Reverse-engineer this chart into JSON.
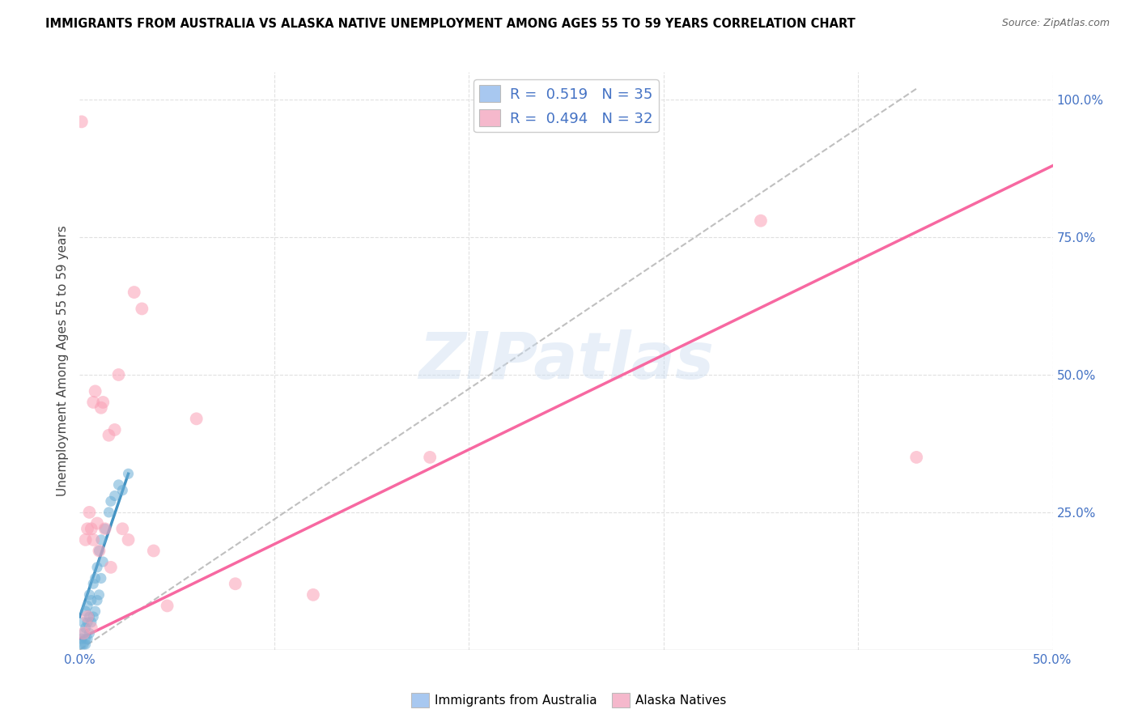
{
  "title": "IMMIGRANTS FROM AUSTRALIA VS ALASKA NATIVE UNEMPLOYMENT AMONG AGES 55 TO 59 YEARS CORRELATION CHART",
  "source": "Source: ZipAtlas.com",
  "ylabel": "Unemployment Among Ages 55 to 59 years",
  "xlim": [
    0.0,
    0.5
  ],
  "ylim": [
    0.0,
    1.05
  ],
  "watermark": "ZIPatlas",
  "blue_scatter_x": [
    0.001,
    0.001,
    0.002,
    0.002,
    0.002,
    0.003,
    0.003,
    0.003,
    0.003,
    0.004,
    0.004,
    0.004,
    0.005,
    0.005,
    0.005,
    0.006,
    0.006,
    0.007,
    0.007,
    0.008,
    0.008,
    0.009,
    0.009,
    0.01,
    0.01,
    0.011,
    0.011,
    0.012,
    0.013,
    0.015,
    0.016,
    0.018,
    0.02,
    0.022,
    0.025
  ],
  "blue_scatter_y": [
    0.01,
    0.02,
    0.01,
    0.03,
    0.05,
    0.01,
    0.02,
    0.04,
    0.07,
    0.02,
    0.05,
    0.08,
    0.03,
    0.06,
    0.1,
    0.05,
    0.09,
    0.06,
    0.12,
    0.07,
    0.13,
    0.09,
    0.15,
    0.1,
    0.18,
    0.13,
    0.2,
    0.16,
    0.22,
    0.25,
    0.27,
    0.28,
    0.3,
    0.29,
    0.32
  ],
  "pink_scatter_x": [
    0.001,
    0.002,
    0.003,
    0.004,
    0.004,
    0.005,
    0.006,
    0.006,
    0.007,
    0.007,
    0.008,
    0.009,
    0.01,
    0.011,
    0.012,
    0.013,
    0.015,
    0.016,
    0.018,
    0.02,
    0.022,
    0.025,
    0.028,
    0.032,
    0.038,
    0.045,
    0.06,
    0.08,
    0.12,
    0.18,
    0.35,
    0.43
  ],
  "pink_scatter_y": [
    0.96,
    0.03,
    0.2,
    0.06,
    0.22,
    0.25,
    0.04,
    0.22,
    0.2,
    0.45,
    0.47,
    0.23,
    0.18,
    0.44,
    0.45,
    0.22,
    0.39,
    0.15,
    0.4,
    0.5,
    0.22,
    0.2,
    0.65,
    0.62,
    0.18,
    0.08,
    0.42,
    0.12,
    0.1,
    0.35,
    0.78,
    0.35
  ],
  "blue_line_x": [
    0.0,
    0.025
  ],
  "blue_line_y": [
    0.06,
    0.32
  ],
  "pink_line_x": [
    0.0,
    0.5
  ],
  "pink_line_y": [
    0.02,
    0.88
  ],
  "dashed_line_x": [
    0.0,
    0.43
  ],
  "dashed_line_y": [
    0.0,
    1.02
  ],
  "title_color": "#000000",
  "blue_color": "#6baed6",
  "pink_color": "#fa9fb5",
  "dashed_color": "#b0b0b0",
  "blue_line_color": "#4393c3",
  "pink_line_color": "#f768a1",
  "axis_label_color": "#4472c4",
  "grid_color": "#e0e0e0",
  "background_color": "#ffffff",
  "legend_blue_color": "#a8c8f0",
  "legend_pink_color": "#f5b8cc",
  "r_blue": "0.519",
  "n_blue": "35",
  "r_pink": "0.494",
  "n_pink": "32"
}
